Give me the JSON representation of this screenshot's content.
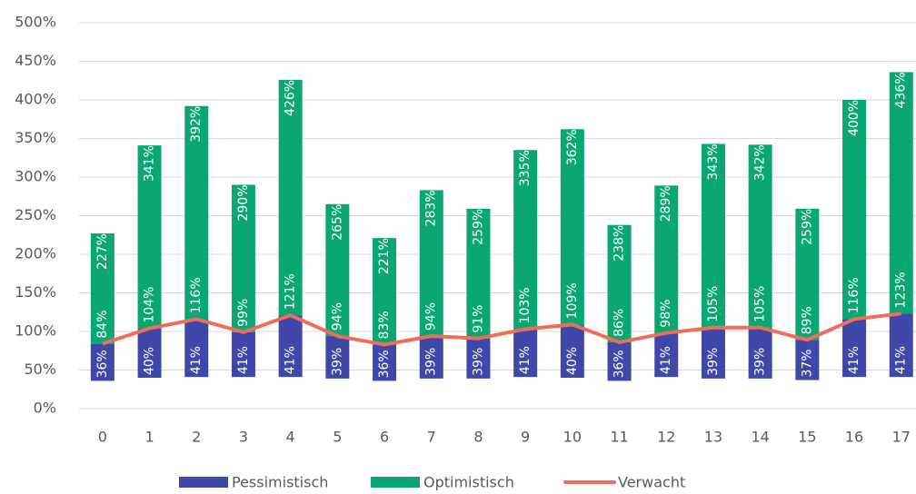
{
  "chart_data": {
    "type": "floating-bar",
    "categories": [
      "0",
      "1",
      "2",
      "3",
      "4",
      "5",
      "6",
      "7",
      "8",
      "9",
      "10",
      "11",
      "12",
      "13",
      "14",
      "15",
      "16",
      "17"
    ],
    "series": [
      {
        "name": "Pessimistisch",
        "color": "#3f48a8",
        "values": [
          36,
          40,
          41,
          41,
          41,
          39,
          36,
          39,
          39,
          41,
          40,
          36,
          41,
          39,
          39,
          37,
          41,
          41
        ],
        "value_labels": [
          "36%",
          "40%",
          "41%",
          "41%",
          "41%",
          "39%",
          "36%",
          "39%",
          "39%",
          "41%",
          "40%",
          "36%",
          "41%",
          "39%",
          "39%",
          "37%",
          "41%",
          "41%"
        ]
      },
      {
        "name": "Optimistisch",
        "color": "#0aa870",
        "values": [
          227,
          341,
          392,
          290,
          426,
          265,
          221,
          283,
          259,
          335,
          362,
          238,
          289,
          343,
          342,
          259,
          400,
          436
        ],
        "value_labels": [
          "227%",
          "341%",
          "392%",
          "290%",
          "426%",
          "265%",
          "221%",
          "283%",
          "259%",
          "335%",
          "362%",
          "238%",
          "289%",
          "343%",
          "342%",
          "259%",
          "400%",
          "436%"
        ]
      },
      {
        "name": "Verwacht",
        "color": "#ee6e5b",
        "values": [
          84,
          104,
          116,
          99,
          121,
          94,
          83,
          94,
          91,
          103,
          109,
          86,
          98,
          105,
          105,
          89,
          116,
          123
        ],
        "value_labels": [
          "84%",
          "104%",
          "116%",
          "99%",
          "121%",
          "94%",
          "83%",
          "94%",
          "91%",
          "103%",
          "109%",
          "86%",
          "98%",
          "105%",
          "105%",
          "89%",
          "116%",
          "123%"
        ]
      }
    ],
    "ylim": [
      0,
      500
    ],
    "yticks": [
      {
        "value": 0,
        "label": "0%"
      },
      {
        "value": 50,
        "label": "50%"
      },
      {
        "value": 100,
        "label": "100%"
      },
      {
        "value": 150,
        "label": "150%"
      },
      {
        "value": 200,
        "label": "200%"
      },
      {
        "value": 250,
        "label": "250%"
      },
      {
        "value": 300,
        "label": "300%"
      },
      {
        "value": 350,
        "label": "350%"
      },
      {
        "value": 400,
        "label": "400%"
      },
      {
        "value": 450,
        "label": "450%"
      },
      {
        "value": 500,
        "label": "500%"
      }
    ],
    "grid": true,
    "legend": "bottom"
  }
}
